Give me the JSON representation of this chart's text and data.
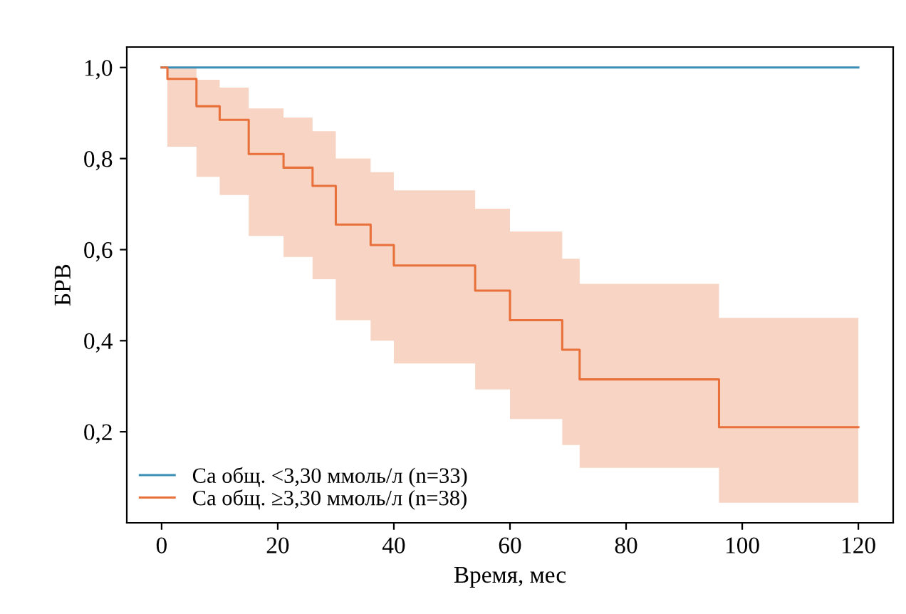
{
  "chart_data": {
    "type": "step",
    "xlabel": "Время, мес",
    "ylabel": "БРВ",
    "xlim": [
      -6,
      126
    ],
    "ylim": [
      0,
      1.045
    ],
    "xticks": [
      0,
      20,
      40,
      60,
      80,
      100,
      120
    ],
    "yticks": [
      {
        "value": 0.2,
        "label": "0,2"
      },
      {
        "value": 0.4,
        "label": "0,4"
      },
      {
        "value": 0.6,
        "label": "0,6"
      },
      {
        "value": 0.8,
        "label": "0,8"
      },
      {
        "value": 1.0,
        "label": "1,0"
      }
    ],
    "legend": "bottom left",
    "grid": false,
    "series": [
      {
        "name": "Ca общ. <3,30 ммоль/л (n=33)",
        "color": "#3a8fb7",
        "x": [
          0,
          120
        ],
        "values": [
          1.0,
          1.0
        ]
      },
      {
        "name": "Ca общ. ≥3,30 ммоль/л (n=38)",
        "color": "#e8703a",
        "x": [
          0,
          1,
          6,
          10,
          15,
          21,
          26,
          30,
          36,
          40,
          54,
          60,
          69,
          72,
          96,
          120
        ],
        "values": [
          1.0,
          0.975,
          0.915,
          0.885,
          0.81,
          0.78,
          0.74,
          0.655,
          0.61,
          0.565,
          0.51,
          0.445,
          0.38,
          0.315,
          0.21,
          0.21
        ],
        "upper": [
          1.0,
          1.0,
          0.973,
          0.956,
          0.91,
          0.89,
          0.86,
          0.8,
          0.77,
          0.73,
          0.69,
          0.64,
          0.58,
          0.525,
          0.45,
          0.45
        ],
        "lower": [
          1.0,
          0.826,
          0.76,
          0.72,
          0.63,
          0.584,
          0.535,
          0.445,
          0.4,
          0.35,
          0.293,
          0.228,
          0.171,
          0.121,
          0.044,
          0.044
        ]
      }
    ]
  }
}
